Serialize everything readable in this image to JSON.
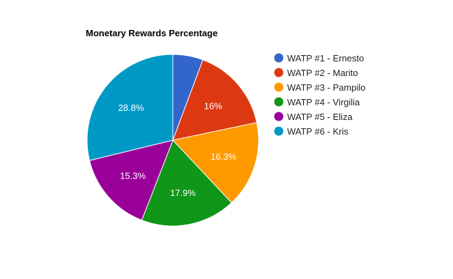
{
  "chart_data": {
    "type": "pie",
    "title": "Monetary Rewards Percentage",
    "legend_position": "right",
    "slices": [
      {
        "label": "WATP #1 - Ernesto",
        "value": 5.7,
        "display": "",
        "color": "#3366cc"
      },
      {
        "label": "WATP #2 - Marito",
        "value": 16.0,
        "display": "16%",
        "color": "#dc3912"
      },
      {
        "label": "WATP #3 - Pampilo",
        "value": 16.3,
        "display": "16.3%",
        "color": "#ff9900"
      },
      {
        "label": "WATP #4 - Virgilia",
        "value": 17.9,
        "display": "17.9%",
        "color": "#109618"
      },
      {
        "label": "WATP #5 - Eliza",
        "value": 15.3,
        "display": "15.3%",
        "color": "#990099"
      },
      {
        "label": "WATP #6 - Kris",
        "value": 28.8,
        "display": "28.8%",
        "color": "#0099c6"
      }
    ]
  }
}
